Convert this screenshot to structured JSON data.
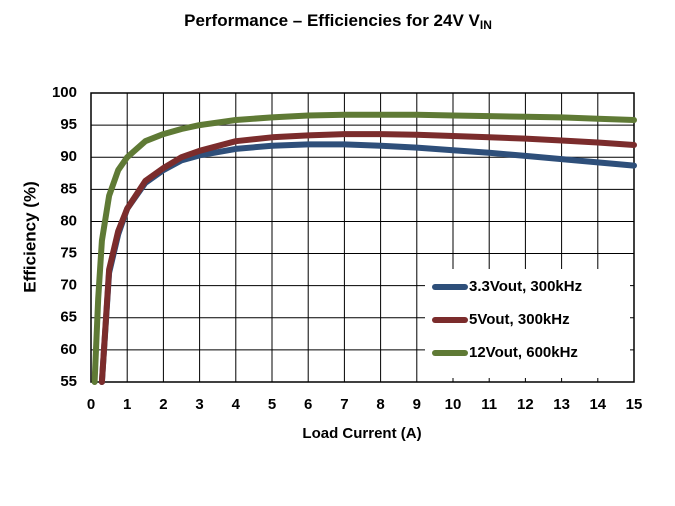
{
  "chart_data": {
    "type": "line",
    "title": "Performance – Efficiencies for 24V V",
    "title_subscript": "IN",
    "x_label": "Load Current (A)",
    "y_label": "Efficiency (%)",
    "x": [
      0.1,
      0.2,
      0.3,
      0.5,
      0.75,
      1,
      1.5,
      2,
      2.5,
      3,
      4,
      5,
      6,
      7,
      8,
      9,
      10,
      11,
      12,
      13,
      14,
      15
    ],
    "series": [
      {
        "name": "3.3Vout, 300kHz",
        "color": "#2e4f7a",
        "values": [
          null,
          null,
          55,
          72,
          78,
          82,
          86,
          88,
          89.5,
          90.3,
          91.3,
          91.8,
          92,
          92,
          91.8,
          91.5,
          91.1,
          90.7,
          90.2,
          89.7,
          89.2,
          88.7
        ]
      },
      {
        "name": "5Vout, 300kHz",
        "color": "#7b2c2c",
        "values": [
          null,
          null,
          55,
          72.5,
          78.5,
          82,
          86.3,
          88.3,
          90,
          91,
          92.5,
          93.1,
          93.4,
          93.6,
          93.6,
          93.5,
          93.3,
          93.1,
          92.9,
          92.6,
          92.3,
          91.9
        ]
      },
      {
        "name": "12Vout, 600kHz",
        "color": "#5f7a35",
        "values": [
          55,
          68,
          77,
          84,
          88,
          90,
          92.5,
          93.6,
          94.4,
          95,
          95.8,
          96.2,
          96.5,
          96.6,
          96.6,
          96.6,
          96.5,
          96.4,
          96.3,
          96.2,
          96,
          95.8
        ]
      }
    ],
    "xlim": [
      0,
      15
    ],
    "ylim": [
      55,
      100
    ],
    "xticks": [
      0,
      1,
      2,
      3,
      4,
      5,
      6,
      7,
      8,
      9,
      10,
      11,
      12,
      13,
      14,
      15
    ],
    "yticks": [
      55,
      60,
      65,
      70,
      75,
      80,
      85,
      90,
      95,
      100
    ],
    "grid": true,
    "legend": "lower right"
  }
}
